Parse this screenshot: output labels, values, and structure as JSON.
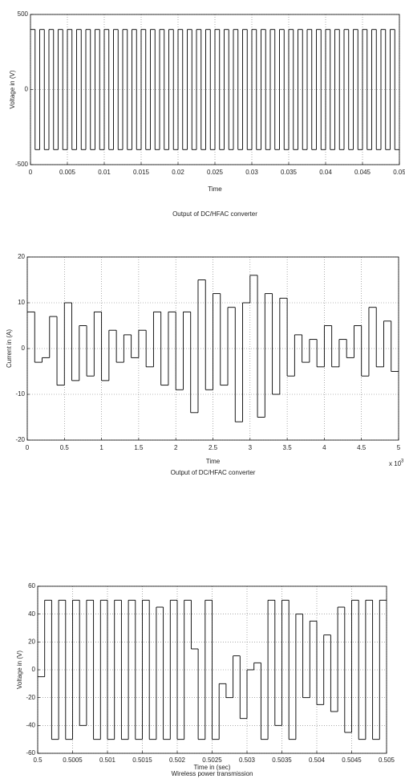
{
  "chart_data": [
    {
      "type": "line",
      "step": true,
      "color": "#000000",
      "grid": true,
      "ylabel": "Voltage in (V)",
      "xlabel": "Time",
      "caption": "Output of DC/HFAC converter",
      "xlim": [
        0,
        0.05
      ],
      "ylim": [
        -500,
        500
      ],
      "xticks": [
        0,
        0.005,
        0.01,
        0.015,
        0.02,
        0.025,
        0.03,
        0.035,
        0.04,
        0.045,
        0.05
      ],
      "yticks": [
        -500,
        0,
        500
      ],
      "x": [
        0,
        0.000625,
        0.00125,
        0.001875,
        0.0025,
        0.003125,
        0.00375,
        0.004375,
        0.005,
        0.005625,
        0.00625,
        0.006875,
        0.0075,
        0.008125,
        0.00875,
        0.009375,
        0.01,
        0.010625,
        0.01125,
        0.011875,
        0.0125,
        0.013125,
        0.01375,
        0.014375,
        0.015,
        0.015625,
        0.01625,
        0.016875,
        0.0175,
        0.018125,
        0.01875,
        0.019375,
        0.02,
        0.020625,
        0.02125,
        0.021875,
        0.0225,
        0.023125,
        0.02375,
        0.024375,
        0.025,
        0.025625,
        0.02625,
        0.026875,
        0.0275,
        0.028125,
        0.02875,
        0.029375,
        0.03,
        0.030625,
        0.03125,
        0.031875,
        0.0325,
        0.033125,
        0.03375,
        0.034375,
        0.035,
        0.035625,
        0.03625,
        0.036875,
        0.0375,
        0.038125,
        0.03875,
        0.039375,
        0.04,
        0.040625,
        0.04125,
        0.041875,
        0.0425,
        0.043125,
        0.04375,
        0.044375,
        0.045,
        0.045625,
        0.04625,
        0.046875,
        0.0475,
        0.048125,
        0.04875,
        0.049375,
        0.05
      ],
      "values": [
        400,
        -400,
        400,
        -400,
        400,
        -400,
        400,
        -400,
        400,
        -400,
        400,
        -400,
        400,
        -400,
        400,
        -400,
        400,
        -400,
        400,
        -400,
        400,
        -400,
        400,
        -400,
        400,
        -400,
        400,
        -400,
        400,
        -400,
        400,
        -400,
        400,
        -400,
        400,
        -400,
        400,
        -400,
        400,
        -400,
        400,
        -400,
        400,
        -400,
        400,
        -400,
        400,
        -400,
        400,
        -400,
        400,
        -400,
        400,
        -400,
        400,
        -400,
        400,
        -400,
        400,
        -400,
        400,
        -400,
        400,
        -400,
        400,
        -400,
        400,
        -400,
        400,
        -400,
        400,
        -400,
        400,
        -400,
        400,
        -400,
        400,
        -400,
        400,
        -400,
        -400
      ]
    },
    {
      "type": "line",
      "step": true,
      "color": "#000000",
      "grid": true,
      "ylabel": "Current in (A)",
      "xlabel": "Time",
      "caption": "Output of DC/HFAC converter",
      "x_multiplier": "x 10",
      "x_multiplier_exponent": "-3",
      "xlim": [
        0,
        5
      ],
      "ylim": [
        -20,
        20
      ],
      "xticks": [
        0,
        0.5,
        1,
        1.5,
        2,
        2.5,
        3,
        3.5,
        4,
        4.5,
        5
      ],
      "yticks": [
        -20,
        -10,
        0,
        10,
        20
      ],
      "x": [
        0,
        0.1,
        0.2,
        0.3,
        0.4,
        0.5,
        0.6,
        0.7,
        0.8,
        0.9,
        1,
        1.1,
        1.2,
        1.3,
        1.4,
        1.5,
        1.6,
        1.7,
        1.8,
        1.9,
        2,
        2.1,
        2.2,
        2.3,
        2.4,
        2.5,
        2.6,
        2.7,
        2.8,
        2.9,
        3,
        3.1,
        3.2,
        3.3,
        3.4,
        3.5,
        3.6,
        3.7,
        3.8,
        3.9,
        4,
        4.1,
        4.2,
        4.3,
        4.4,
        4.5,
        4.6,
        4.7,
        4.8,
        4.9,
        5
      ],
      "values": [
        8,
        -3,
        -2,
        7,
        -8,
        10,
        -7,
        5,
        -6,
        8,
        -7,
        4,
        -3,
        3,
        -2,
        4,
        -4,
        8,
        -8,
        8,
        -9,
        8,
        -14,
        15,
        -9,
        12,
        -8,
        9,
        -16,
        10,
        16,
        -15,
        12,
        -10,
        11,
        -6,
        3,
        -3,
        2,
        -4,
        5,
        -4,
        2,
        -2,
        5,
        -6,
        9,
        -4,
        6,
        -5,
        -5
      ]
    },
    {
      "type": "line",
      "step": true,
      "color": "#000000",
      "grid": true,
      "ylabel": "Voltage in (V)",
      "xlabel": "Time in (sec)",
      "caption": "Wireless power transmission",
      "xlim": [
        0.5,
        0.505
      ],
      "ylim": [
        -60,
        60
      ],
      "xticks": [
        0.5,
        0.5005,
        0.501,
        0.5015,
        0.502,
        0.5025,
        0.503,
        0.5035,
        0.504,
        0.5045,
        0.505
      ],
      "yticks": [
        -60,
        -40,
        -20,
        0,
        20,
        40,
        60
      ],
      "x": [
        0.5,
        0.5001,
        0.5002,
        0.5003,
        0.5004,
        0.5005,
        0.5006,
        0.5007,
        0.5008,
        0.5009,
        0.501,
        0.5011,
        0.5012,
        0.5013,
        0.5014,
        0.5015,
        0.5016,
        0.5017,
        0.5018,
        0.5019,
        0.502,
        0.5021,
        0.5022,
        0.5023,
        0.5024,
        0.5025,
        0.5026,
        0.5027,
        0.5028,
        0.5029,
        0.503,
        0.5031,
        0.5032,
        0.5033,
        0.5034,
        0.5035,
        0.5036,
        0.5037,
        0.5038,
        0.5039,
        0.504,
        0.5041,
        0.5042,
        0.5043,
        0.5044,
        0.5045,
        0.5046,
        0.5047,
        0.5048,
        0.5049,
        0.505
      ],
      "values": [
        -5,
        50,
        -50,
        50,
        -50,
        50,
        -40,
        50,
        -50,
        50,
        -50,
        50,
        -50,
        50,
        -50,
        50,
        -50,
        45,
        -50,
        50,
        -50,
        50,
        15,
        -50,
        50,
        -50,
        -10,
        -20,
        10,
        -35,
        0,
        5,
        -50,
        50,
        -40,
        50,
        -50,
        40,
        -20,
        35,
        -25,
        25,
        -30,
        45,
        -45,
        50,
        -50,
        50,
        -50,
        50,
        50
      ]
    }
  ]
}
